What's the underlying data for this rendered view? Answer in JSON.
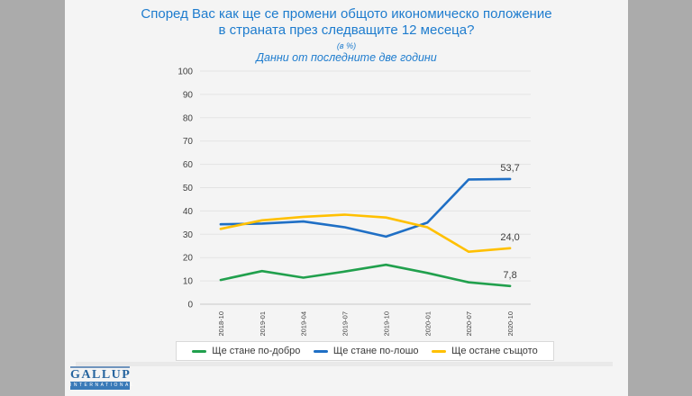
{
  "title": {
    "line1": "Според Вас как ще се промени общото икономическо положение",
    "line2": "в страната през следващите 12 месеца?",
    "unit_note": "(в %)",
    "subtitle": "Данни от последните две години"
  },
  "chart_data": {
    "type": "line",
    "categories": [
      "2018-10",
      "2019-01",
      "2019-04",
      "2019-07",
      "2019-10",
      "2020-01",
      "2020-07",
      "2020-10"
    ],
    "series": [
      {
        "name": "Ще стане по-добро",
        "color": "#21A04D",
        "values": [
          10.4,
          14.2,
          11.4,
          14.0,
          16.9,
          13.4,
          9.4,
          7.8
        ],
        "end_label": "7,8"
      },
      {
        "name": "Ще стане по-лошо",
        "color": "#1F6FC5",
        "values": [
          34.3,
          34.6,
          35.5,
          33.0,
          29.0,
          35.0,
          53.5,
          53.7
        ],
        "end_label": "53,7"
      },
      {
        "name": "Ще остане същото",
        "color": "#FFC000",
        "values": [
          32.3,
          36.0,
          37.5,
          38.4,
          37.2,
          33.0,
          22.5,
          24.0
        ],
        "end_label": "24,0"
      }
    ],
    "ylim": [
      0,
      100
    ],
    "ytick_step": 10,
    "grid": true,
    "legend_position": "bottom",
    "title": "Според Вас как ще се промени общото икономическо положение в страната през следващите 12 месеца?",
    "xlabel": "",
    "ylabel": ""
  },
  "colors": {
    "title_text": "#1E7CCE",
    "page_margin": "#ababab",
    "slide_background": "#f4f4f4",
    "gridline": "#e3e3e3",
    "axis_line": "#c9c9c9",
    "tick_text": "#404040",
    "data_label_text": "#3c3c3c"
  },
  "logo": {
    "name": "GALLUP",
    "sub": "INTERNATIONAL"
  }
}
